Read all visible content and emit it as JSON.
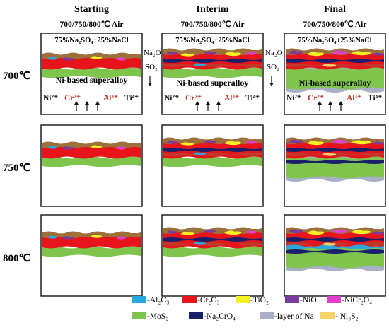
{
  "columns": [
    {
      "title": "Starting",
      "subtitle": "700/750/800℃ Air"
    },
    {
      "title": "Interim",
      "subtitle": "700/750/800℃ Air"
    },
    {
      "title": "Final",
      "subtitle": "700/750/800℃ Air"
    }
  ],
  "rows": [
    "700℃",
    "750℃",
    "800℃"
  ],
  "panel_text": {
    "salt": "75%Na₂SO₄+25%NaCl",
    "substrate": "Ni-based superalloy",
    "ions": [
      {
        "text": "Ni²⁺",
        "color": "#111111"
      },
      {
        "text": "Cr²⁺",
        "color": "#c0392b"
      },
      {
        "text": "Al³⁺",
        "color": "#c0392b"
      },
      {
        "text": "Ti⁴⁺",
        "color": "#111111"
      }
    ]
  },
  "transition": {
    "species1": "Na₂O",
    "species2": "SO₂"
  },
  "legend": [
    {
      "label": "-Al₂O₃",
      "color": "#29a8e0"
    },
    {
      "label": "-Cr₂O₃",
      "color": "#e8141c"
    },
    {
      "label": "-TiO₂",
      "color": "#f7f024"
    },
    {
      "label": "-NiO",
      "color": "#7a3a9e"
    },
    {
      "label": "-NiCr₂O₄",
      "color": "#e23fd0"
    },
    {
      "label": "-MoS₂",
      "color": "#7fc44d"
    },
    {
      "label": "-Na₂CrO₄",
      "color": "#1a1f6b"
    },
    {
      "label": "-layer of Na",
      "color": "#a9b0c6"
    },
    {
      "label": "- Ni₃S₂",
      "color": "#f5d36a"
    }
  ],
  "colors": {
    "Al2O3": "#29a8e0",
    "Cr2O3": "#e8141c",
    "TiO2": "#f7f024",
    "NiO": "#7a3a9e",
    "NiCr2O4": "#e23fd0",
    "MoS2": "#7fc44d",
    "Na2CrO4": "#1a1f6b",
    "Na_layer": "#a9b0c6",
    "Ni3S2": "#f5d36a",
    "salt_brown": "#9c6f3b"
  }
}
